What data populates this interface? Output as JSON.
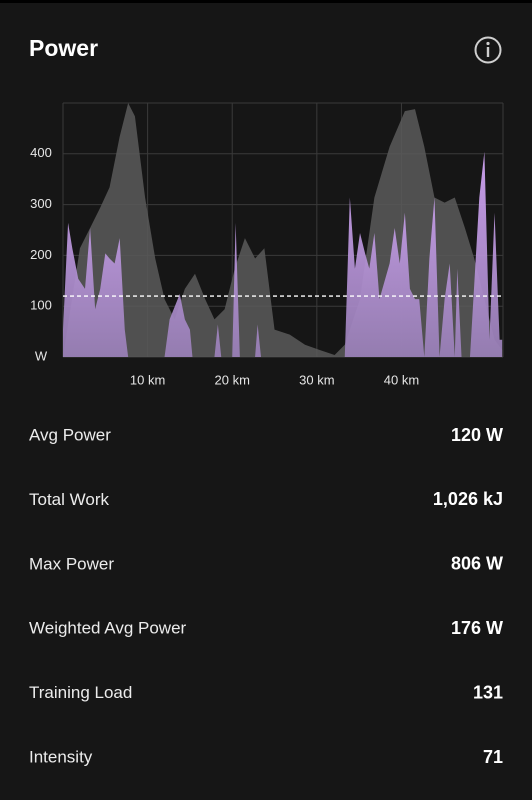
{
  "header": {
    "title": "Power"
  },
  "chart_data": {
    "type": "area",
    "xlim": [
      0,
      52
    ],
    "xticks": [
      {
        "value": 10,
        "label": "10 km"
      },
      {
        "value": 20,
        "label": "20 km"
      },
      {
        "value": 30,
        "label": "30 km"
      },
      {
        "value": 40,
        "label": "40 km"
      }
    ],
    "ylim": [
      0,
      500
    ],
    "yticks": [
      {
        "value": 0,
        "label": "W"
      },
      100,
      200,
      300,
      400
    ],
    "grid": true,
    "reference_line": 120,
    "series": [
      {
        "color": "#5a5a5a",
        "x": [
          0,
          2.0,
          3.2,
          4.4,
          5.5,
          6.7,
          7.7,
          8.5,
          9.7,
          10.9,
          12.0,
          13.2,
          14.4,
          15.6,
          16.8,
          17.9,
          19.1,
          20.3,
          21.5,
          22.7,
          23.8,
          25.0,
          26.8,
          28.6,
          30.3,
          32.1,
          33.3,
          35.1,
          36.8,
          38.6,
          40.4,
          41.6,
          42.7,
          43.9,
          45.1,
          46.3,
          47.5,
          48.6,
          49.8,
          51.0,
          51.9
        ],
        "values": [
          0,
          214,
          254,
          294,
          334,
          434,
          500,
          474,
          314,
          194,
          114,
          74,
          134,
          164,
          114,
          74,
          94,
          174,
          234,
          194,
          214,
          54,
          44,
          24,
          14,
          4,
          24,
          114,
          314,
          414,
          484,
          488,
          414,
          314,
          304,
          314,
          254,
          194,
          114,
          34,
          14
        ]
      },
      {
        "color": "#c99cf2",
        "x": [
          0,
          0.6,
          1.1,
          1.8,
          2.6,
          3.2,
          3.8,
          4.4,
          5.0,
          5.5,
          6.1,
          6.7,
          7.3,
          7.7,
          12.0,
          12.6,
          13.8,
          14.4,
          15.0,
          15.3,
          17.9,
          18.3,
          18.7,
          20.0,
          20.4,
          20.9,
          22.7,
          23.0,
          23.4,
          33.3,
          33.9,
          34.5,
          35.1,
          35.7,
          36.2,
          36.8,
          37.4,
          38.6,
          39.2,
          39.8,
          40.4,
          41.0,
          41.6,
          42.1,
          42.7,
          43.3,
          43.9,
          44.5,
          45.1,
          45.7,
          46.3,
          46.6,
          47.1,
          48.1,
          49.2,
          49.8,
          50.4,
          51.0,
          51.6,
          51.9
        ],
        "values": [
          54,
          264,
          214,
          154,
          134,
          254,
          94,
          134,
          204,
          194,
          184,
          234,
          54,
          0,
          0,
          74,
          124,
          74,
          54,
          0,
          0,
          64,
          0,
          0,
          264,
          0,
          0,
          64,
          0,
          0,
          314,
          174,
          244,
          204,
          174,
          244,
          114,
          184,
          254,
          184,
          284,
          134,
          114,
          114,
          0,
          194,
          314,
          0,
          114,
          184,
          0,
          174,
          0,
          0,
          314,
          404,
          34,
          284,
          34,
          34
        ]
      }
    ]
  },
  "stats": [
    {
      "label": "Avg Power",
      "value": "120 W"
    },
    {
      "label": "Total Work",
      "value": "1,026 kJ"
    },
    {
      "label": "Max Power",
      "value": "806 W"
    },
    {
      "label": "Weighted Avg Power",
      "value": "176 W"
    },
    {
      "label": "Training Load",
      "value": "131"
    },
    {
      "label": "Intensity",
      "value": "71"
    }
  ]
}
